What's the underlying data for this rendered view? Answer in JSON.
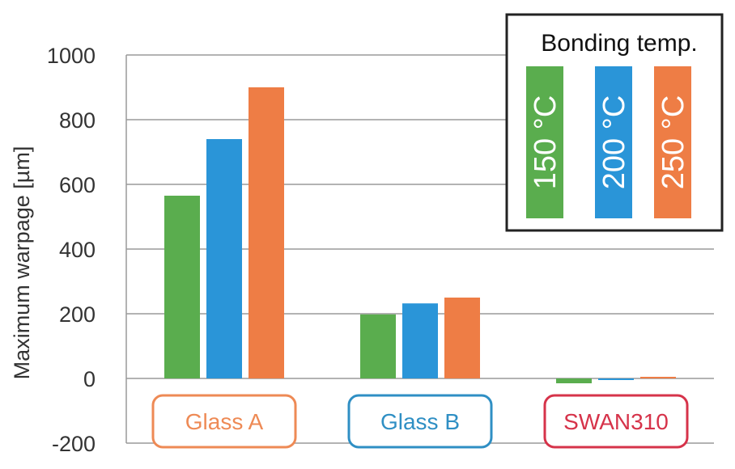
{
  "chart_data": {
    "type": "bar",
    "title": "",
    "xlabel": "",
    "ylabel": "Maximum warpage [µm]",
    "ylim": [
      -200,
      1000
    ],
    "yticks": [
      1000,
      800,
      600,
      400,
      200,
      0,
      -200
    ],
    "grid": true,
    "categories": [
      "Glass A",
      "Glass B",
      "SWAN310"
    ],
    "category_colors": [
      "#ee8a55",
      "#2f8fc4",
      "#d6334a"
    ],
    "series": [
      {
        "name": "150 °C",
        "color": "#5aad4e",
        "values": [
          565,
          198,
          -15
        ]
      },
      {
        "name": "200 °C",
        "color": "#2a95d8",
        "values": [
          740,
          232,
          -5
        ]
      },
      {
        "name": "250 °C",
        "color": "#ee7d45",
        "values": [
          900,
          250,
          5
        ]
      }
    ],
    "legend": {
      "title": "Bonding temp.",
      "placement": "top-right",
      "label_colors": [
        "#6cba4c",
        "#1a73b8",
        "#ef7e45"
      ]
    }
  }
}
